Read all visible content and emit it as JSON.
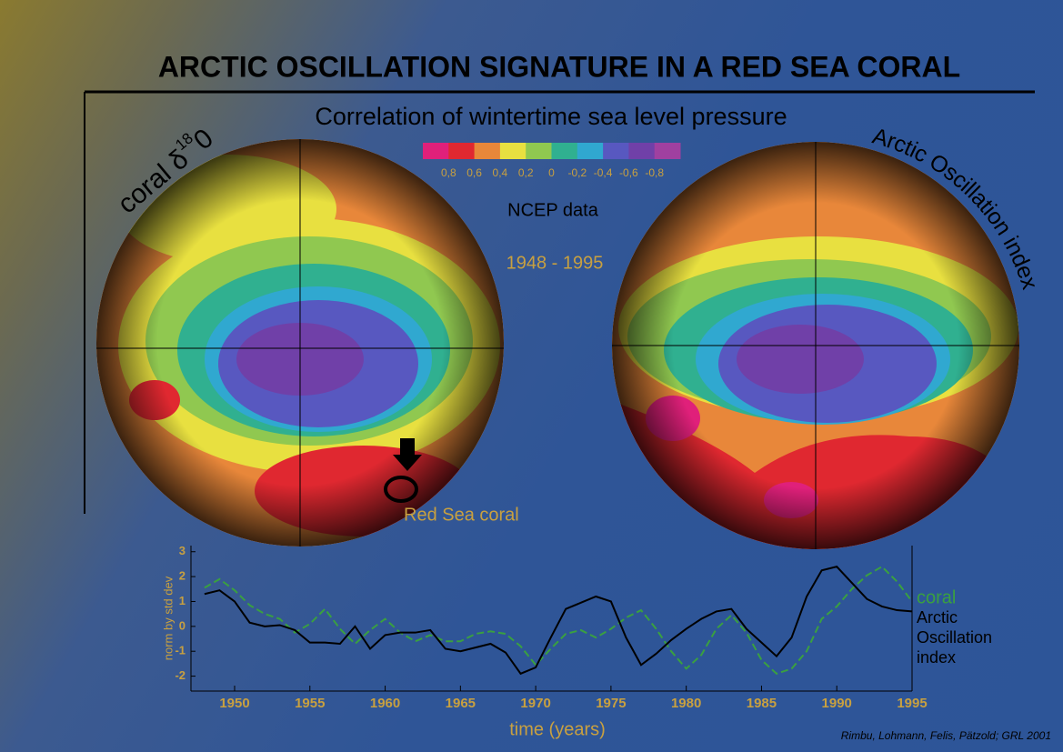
{
  "title": "ARCTIC OSCILLATION SIGNATURE IN A RED SEA CORAL",
  "subtitle": "Correlation of wintertime sea level pressure",
  "colorbar": {
    "colors": [
      "#e0207a",
      "#e02830",
      "#e8873a",
      "#e8e040",
      "#90c850",
      "#30b090",
      "#30a8d0",
      "#5858c0",
      "#7040a8",
      "#a040a0"
    ],
    "labels": [
      "0,8",
      "0,6",
      "0,4",
      "0,2",
      "0",
      "-0,2",
      "-0,4",
      "-0,6",
      "-0,8"
    ]
  },
  "source": "NCEP data",
  "period": "1948 - 1995",
  "left_map": {
    "label": "coral δ",
    "label_sup": "18",
    "label_end": "0",
    "marker": "Red Sea coral"
  },
  "right_map": {
    "label": "Arctic Oscillation index"
  },
  "citation": "Rimbu, Lohmann, Felis, Pätzold; GRL 2001",
  "chart_data": {
    "type": "line",
    "x_label": "time (years)",
    "y_label": "norm by std dev",
    "x": [
      1948,
      1949,
      1950,
      1951,
      1952,
      1953,
      1954,
      1955,
      1956,
      1957,
      1958,
      1959,
      1960,
      1961,
      1962,
      1963,
      1964,
      1965,
      1966,
      1967,
      1968,
      1969,
      1970,
      1971,
      1972,
      1973,
      1974,
      1975,
      1976,
      1977,
      1978,
      1979,
      1980,
      1981,
      1982,
      1983,
      1984,
      1985,
      1986,
      1987,
      1988,
      1989,
      1990,
      1991,
      1992,
      1993,
      1994,
      1995
    ],
    "series": [
      {
        "name": "coral",
        "color": "#3aa040",
        "dashed": true,
        "values": [
          1.55,
          1.9,
          1.45,
          0.85,
          0.5,
          0.3,
          -0.25,
          0.1,
          0.7,
          -0.1,
          -0.7,
          -0.15,
          0.3,
          -0.25,
          -0.6,
          -0.35,
          -0.6,
          -0.6,
          -0.3,
          -0.2,
          -0.3,
          -0.8,
          -1.55,
          -0.9,
          -0.3,
          -0.15,
          -0.45,
          -0.1,
          0.35,
          0.65,
          -0.1,
          -1.0,
          -1.7,
          -1.15,
          -0.1,
          0.45,
          -0.25,
          -1.35,
          -1.9,
          -1.7,
          -1.0,
          0.3,
          0.8,
          1.5,
          2.05,
          2.4,
          1.8,
          1.0
        ]
      },
      {
        "name": "Arctic Oscillation index",
        "color": "#000000",
        "dashed": false,
        "values": [
          1.3,
          1.45,
          1.0,
          0.15,
          0,
          0.05,
          -0.15,
          -0.65,
          -0.65,
          -0.7,
          0,
          -0.9,
          -0.35,
          -0.25,
          -0.25,
          -0.15,
          -0.9,
          -1.0,
          -0.85,
          -0.7,
          -1.05,
          -1.9,
          -1.65,
          -0.45,
          0.7,
          0.95,
          1.2,
          1.0,
          -0.45,
          -1.55,
          -1.1,
          -0.55,
          -0.1,
          0.3,
          0.6,
          0.7,
          -0.1,
          -0.65,
          -1.2,
          -0.45,
          1.2,
          2.25,
          2.4,
          1.75,
          1.1,
          0.8,
          0.65,
          0.6
        ]
      }
    ],
    "xlim": [
      1947.1,
      1995
    ],
    "ylim": [
      -2.6,
      3.1
    ],
    "xticks": [
      1950,
      1955,
      1960,
      1965,
      1970,
      1975,
      1980,
      1985,
      1990,
      1995
    ],
    "yticks": [
      -2,
      -1,
      0,
      1,
      2,
      3
    ]
  }
}
